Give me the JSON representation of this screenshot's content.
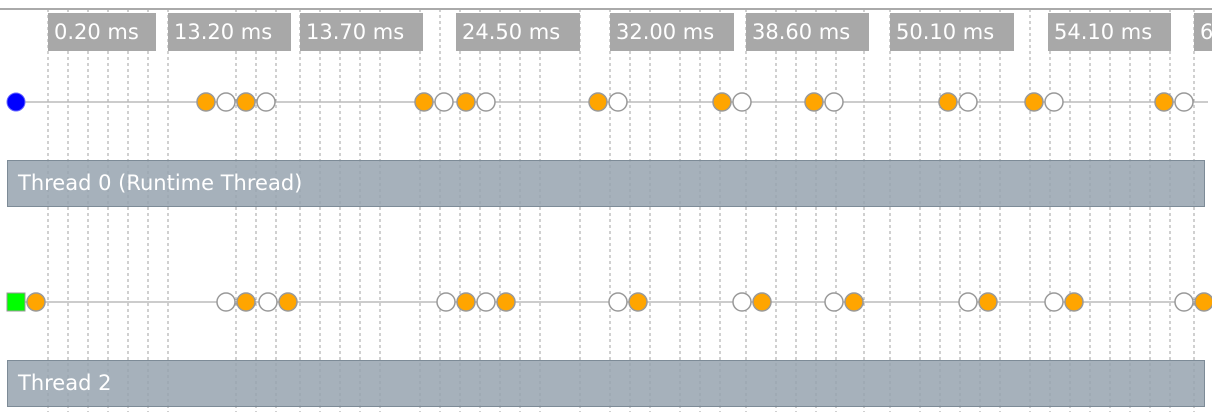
{
  "timeline": {
    "markers": [
      "0.20 ms",
      "13.20 ms",
      "13.70 ms",
      "24.50 ms",
      "32.00 ms",
      "38.60 ms",
      "50.10 ms",
      "54.10 ms",
      "6"
    ],
    "threads": [
      {
        "name": "Thread 0 (Runtime Thread)",
        "start_marker": "blue-circle",
        "events": [
          "orange",
          "white",
          "orange",
          "white",
          "orange",
          "white",
          "orange",
          "white",
          "orange",
          "white",
          "orange",
          "white",
          "orange",
          "white",
          "orange",
          "white",
          "orange",
          "white",
          "orange",
          "white"
        ]
      },
      {
        "name": "Thread 2",
        "start_marker": "green-square",
        "events": [
          "orange",
          "white",
          "orange",
          "white",
          "orange",
          "white",
          "orange",
          "white",
          "orange",
          "white",
          "orange",
          "white",
          "orange",
          "white",
          "orange",
          "white",
          "orange",
          "white",
          "orange",
          "white",
          "orange"
        ]
      }
    ],
    "colors": {
      "header_line": "#aaaaaa",
      "marker_bg": "#a8a8a8",
      "marker_text": "#ffffff",
      "grid": "#a0a0a0",
      "track_line": "#bbbbbb",
      "event_orange": "#ffa500",
      "event_white": "#ffffff",
      "event_stroke": "#999999",
      "runtime_start": "#0000ff",
      "thread2_start": "#00ff00",
      "thread_bar": "#96a3af"
    }
  }
}
